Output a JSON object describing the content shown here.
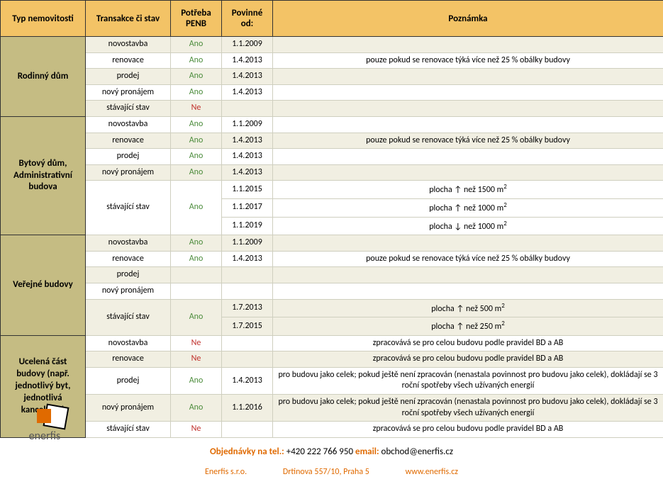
{
  "colors": {
    "header_bg": "#f3c366",
    "cat_bg": "#c5bc83",
    "alt_row": "#f1efe2",
    "yes": "#4a8b3a",
    "no": "#c0302c",
    "brand": "#e06a00"
  },
  "fonts": {
    "base": "Calibri",
    "size_pt": 12,
    "header_pt": 13
  },
  "headers": {
    "type": "Typ nemovitosti",
    "transaction": "Transakce či stav",
    "need": "Potřeba PENB",
    "date": "Povinné od:",
    "note": "Poznámka"
  },
  "groups": [
    {
      "label": "Rodinný dům",
      "rows": [
        {
          "trans": "novostavba",
          "need": "Ano",
          "date": "1.1.2009",
          "note": "",
          "alt": true
        },
        {
          "trans": "renovace",
          "need": "Ano",
          "date": "1.4.2013",
          "note": "pouze pokud se renovace týká více než 25 % obálky budovy",
          "alt": false
        },
        {
          "trans": "prodej",
          "need": "Ano",
          "date": "1.4.2013",
          "note": "",
          "alt": true
        },
        {
          "trans": "nový pronájem",
          "need": "Ano",
          "date": "1.4.2013",
          "note": "",
          "alt": false
        },
        {
          "trans": "stávající stav",
          "need": "Ne",
          "date": "",
          "note": "",
          "alt": true
        }
      ]
    },
    {
      "label": "Bytový dům, Administrativní budova",
      "rows": [
        {
          "trans": "novostavba",
          "need": "Ano",
          "date": "1.1.2009",
          "note": "",
          "alt": false
        },
        {
          "trans": "renovace",
          "need": "Ano",
          "date": "1.4.2013",
          "note": "pouze pokud se renovace týká více než 25 % obálky budovy",
          "alt": true
        },
        {
          "trans": "prodej",
          "need": "Ano",
          "date": "1.4.2013",
          "note": "",
          "alt": false
        },
        {
          "trans": "nový pronájem",
          "need": "Ano",
          "date": "1.4.2013",
          "note": "",
          "alt": true
        },
        {
          "trans": "stávající stav",
          "need": "Ano",
          "trans_rowspan": 3,
          "need_rowspan": 3,
          "date": "1.1.2015",
          "note": "plocha ↑ než 1500 m²",
          "alt": false
        },
        {
          "skip_trans": true,
          "skip_need": true,
          "date": "1.1.2017",
          "note": "plocha ↑ než 1000 m²",
          "alt": false
        },
        {
          "skip_trans": true,
          "skip_need": true,
          "date": "1.1.2019",
          "note": "plocha ↓ než 1000 m²",
          "alt": false
        }
      ]
    },
    {
      "label": "Veřejné budovy",
      "rows": [
        {
          "trans": "novostavba",
          "need": "Ano",
          "date": "1.1.2009",
          "note": "",
          "alt": true
        },
        {
          "trans": "renovace",
          "need": "Ano",
          "date": "1.4.2013",
          "note": "pouze pokud se renovace týká více než 25 % obálky budovy",
          "alt": false
        },
        {
          "trans": "prodej",
          "need": "",
          "date": "",
          "note": "",
          "alt": true
        },
        {
          "trans": "nový pronájem",
          "need": "",
          "date": "",
          "note": "",
          "alt": false
        },
        {
          "trans": "stávající stav",
          "need": "Ano",
          "trans_rowspan": 2,
          "need_rowspan": 2,
          "date": "1.7.2013",
          "note": "plocha ↑ než 500 m²",
          "alt": true
        },
        {
          "skip_trans": true,
          "skip_need": true,
          "date": "1.7.2015",
          "note": "plocha ↑ než 250 m²",
          "alt": true
        }
      ]
    },
    {
      "label": "Ucelená část budovy (např. jednotlivý byt, jednotlivá kancelář,…)",
      "rows": [
        {
          "trans": "novostavba",
          "need": "Ne",
          "date": "",
          "note": "zpracovává se pro celou budovu podle pravidel BD a AB",
          "alt": false
        },
        {
          "trans": "renovace",
          "need": "Ne",
          "date": "",
          "note": "zpracovává se pro celou budovu podle pravidel BD a AB",
          "alt": true
        },
        {
          "trans": "prodej",
          "need": "Ano",
          "date": "1.4.2013",
          "note": "pro budovu jako celek; pokud ještě není zpracován (nenastala povinnost pro budovu jako celek), dokládají se 3 roční spotřeby všech užívaných energií",
          "alt": false
        },
        {
          "trans": "nový pronájem",
          "need": "Ano",
          "date": "1.1.2016",
          "note": "pro budovu jako celek; pokud ještě není zpracován (nenastala povinnost pro budovu jako celek), dokládají se 3 roční spotřeby všech užívaných energií",
          "alt": true
        },
        {
          "trans": "stávající stav",
          "need": "Ne",
          "date": "",
          "note": "zpracovává se pro celou budovu podle pravidel BD a AB",
          "alt": false
        }
      ]
    }
  ],
  "footer": {
    "order_label": "Objednávky na tel.:",
    "phone": "+420 222 766 950",
    "email_label": "email:",
    "email": "obchod@enerfis.cz",
    "company": "Enerfis s.r.o.",
    "address": "Drtinova 557/10, Praha 5",
    "web": "www.enerfis.cz",
    "brand": "enerfis"
  }
}
